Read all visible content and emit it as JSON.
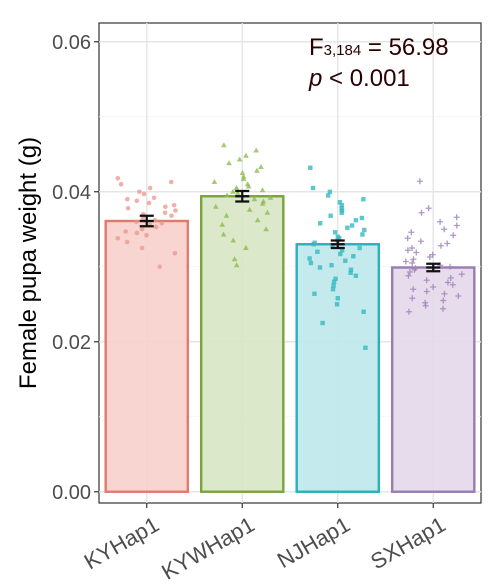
{
  "chart_data": {
    "type": "bar",
    "categories": [
      "KYHap1",
      "KYWHap1",
      "NJHap1",
      "SXHap1"
    ],
    "values": [
      0.0361,
      0.0394,
      0.033,
      0.0299
    ],
    "error": [
      0.0007,
      0.0007,
      0.0005,
      0.0005
    ],
    "ylabel": "Female pupa weight (g)",
    "xlabel": "",
    "ylim": [
      -0.0015,
      0.0625
    ],
    "yticks": [
      0.0,
      0.02,
      0.04,
      0.06
    ],
    "ytick_labels": [
      "0.00",
      "0.02",
      "0.04",
      "0.06"
    ],
    "grid": true,
    "annotation": {
      "stat_prefix": "F",
      "stat_subscript": "3,184",
      "stat_value": " = 56.98",
      "p_symbol": "p",
      "p_value": " < 0.001"
    },
    "colors": {
      "fill": [
        "#f7d1cd",
        "#d8e6c5",
        "#bfe8eb",
        "#e4d9ea"
      ],
      "stroke": [
        "#e07a6d",
        "#7aa33c",
        "#28b1b9",
        "#9b7bb3"
      ],
      "points": [
        "#e9958a",
        "#8dba50",
        "#35b9c1",
        "#a384bb"
      ]
    },
    "point_shapes": [
      "circle",
      "triangle",
      "square",
      "plus"
    ],
    "points": [
      [
        0.0418,
        0.0413,
        0.041,
        0.0405,
        0.04,
        0.0397,
        0.0392,
        0.039,
        0.0388,
        0.0385,
        0.0382,
        0.038,
        0.0378,
        0.0375,
        0.0372,
        0.037,
        0.0368,
        0.0365,
        0.0362,
        0.036,
        0.0358,
        0.0356,
        0.0353,
        0.035,
        0.0347,
        0.0345,
        0.0342,
        0.0338,
        0.0333,
        0.0325,
        0.0318,
        0.03
      ],
      [
        0.0462,
        0.0455,
        0.0448,
        0.0443,
        0.0438,
        0.0433,
        0.0428,
        0.0425,
        0.042,
        0.0417,
        0.0413,
        0.041,
        0.0407,
        0.0405,
        0.0402,
        0.04,
        0.0398,
        0.0395,
        0.0392,
        0.039,
        0.0387,
        0.0384,
        0.038,
        0.0376,
        0.0372,
        0.0368,
        0.0362,
        0.0356,
        0.035,
        0.0343,
        0.0335,
        0.0325,
        0.031,
        0.0302
      ],
      [
        0.0432,
        0.0405,
        0.04,
        0.0395,
        0.039,
        0.0386,
        0.0382,
        0.0378,
        0.0375,
        0.0372,
        0.0368,
        0.0365,
        0.0362,
        0.0358,
        0.0355,
        0.0352,
        0.0349,
        0.0346,
        0.0343,
        0.034,
        0.0338,
        0.0335,
        0.0332,
        0.033,
        0.0328,
        0.0325,
        0.0322,
        0.032,
        0.0317,
        0.0314,
        0.0311,
        0.0308,
        0.0305,
        0.0302,
        0.0299,
        0.0296,
        0.0292,
        0.0288,
        0.0284,
        0.028,
        0.0275,
        0.027,
        0.0264,
        0.0258,
        0.025,
        0.024,
        0.0225,
        0.0192
      ],
      [
        0.0414,
        0.0378,
        0.0372,
        0.0366,
        0.036,
        0.0355,
        0.035,
        0.0346,
        0.0342,
        0.0338,
        0.0334,
        0.0331,
        0.0328,
        0.0325,
        0.0322,
        0.0319,
        0.0316,
        0.0313,
        0.031,
        0.0307,
        0.0305,
        0.0302,
        0.03,
        0.0298,
        0.0296,
        0.0293,
        0.029,
        0.0288,
        0.0285,
        0.0282,
        0.0279,
        0.0276,
        0.0273,
        0.027,
        0.0267,
        0.0264,
        0.0261,
        0.0258,
        0.0255,
        0.0252,
        0.0248,
        0.0244,
        0.024
      ]
    ]
  }
}
